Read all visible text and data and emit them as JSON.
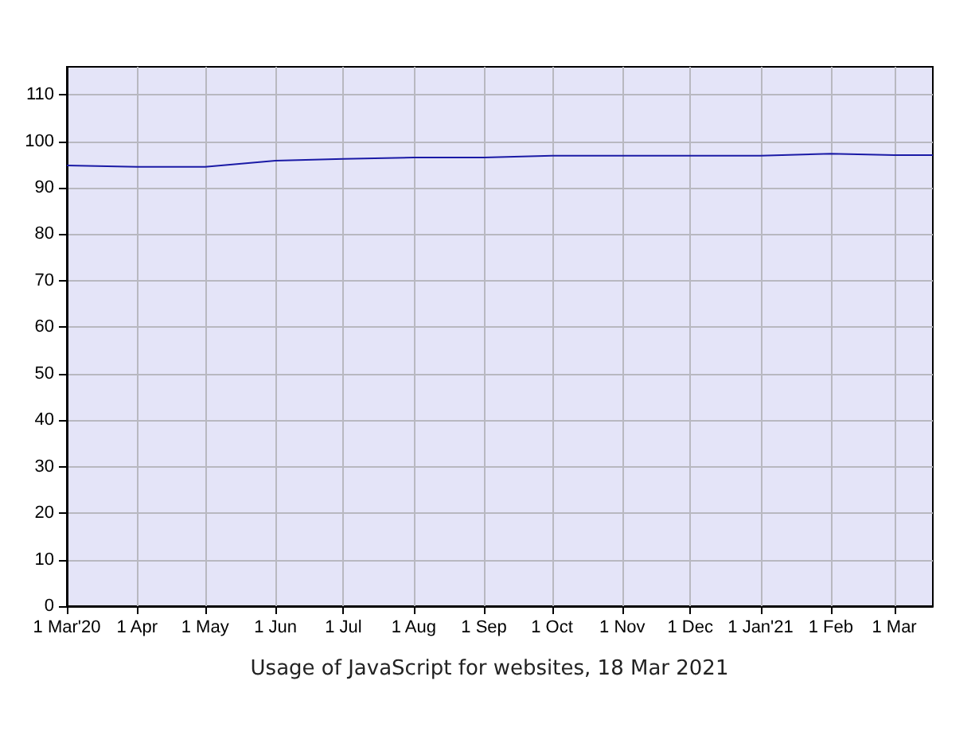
{
  "chart_data": {
    "type": "line",
    "title": "Usage of JavaScript for websites, 18 Mar 2021",
    "x": [
      "2020-03-01",
      "2020-04-01",
      "2020-05-01",
      "2020-06-01",
      "2020-07-01",
      "2020-08-01",
      "2020-09-01",
      "2020-10-01",
      "2020-11-01",
      "2020-12-01",
      "2021-01-01",
      "2021-02-01",
      "2021-03-01",
      "2021-03-18"
    ],
    "series": [
      {
        "color": "#1a1aa6",
        "values": [
          94.8,
          94.5,
          94.5,
          95.8,
          96.2,
          96.5,
          96.5,
          96.9,
          96.9,
          96.9,
          96.9,
          97.3,
          97.0,
          97.0
        ]
      }
    ],
    "xlim": [
      "2020-03-01",
      "2021-03-18"
    ],
    "xticks": [
      {
        "value": "2020-03-01",
        "label": "1 Mar'20"
      },
      {
        "value": "2020-04-01",
        "label": "1 Apr"
      },
      {
        "value": "2020-05-01",
        "label": "1 May"
      },
      {
        "value": "2020-06-01",
        "label": "1 Jun"
      },
      {
        "value": "2020-07-01",
        "label": "1 Jul"
      },
      {
        "value": "2020-08-01",
        "label": "1 Aug"
      },
      {
        "value": "2020-09-01",
        "label": "1 Sep"
      },
      {
        "value": "2020-10-01",
        "label": "1 Oct"
      },
      {
        "value": "2020-11-01",
        "label": "1 Nov"
      },
      {
        "value": "2020-12-01",
        "label": "1 Dec"
      },
      {
        "value": "2021-01-01",
        "label": "1 Jan'21"
      },
      {
        "value": "2021-02-01",
        "label": "1 Feb"
      },
      {
        "value": "2021-03-01",
        "label": "1 Mar"
      }
    ],
    "ylim": [
      0,
      116
    ],
    "yticks": [
      0,
      10,
      20,
      30,
      40,
      50,
      60,
      70,
      80,
      90,
      100,
      110
    ],
    "grid": true,
    "marker": "none",
    "line_style": "solid"
  }
}
